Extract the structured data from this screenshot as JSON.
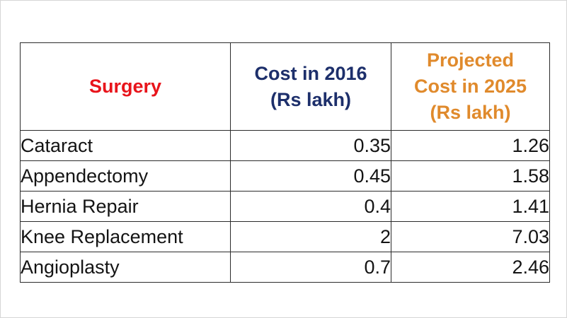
{
  "chart_data": {
    "type": "table",
    "columns": [
      {
        "lines": [
          "Surgery"
        ],
        "color": "#e8141b"
      },
      {
        "lines": [
          "Cost in 2016",
          "(Rs lakh)"
        ],
        "color": "#1d2f6b"
      },
      {
        "lines": [
          "Projected",
          "Cost in 2025",
          "(Rs lakh)"
        ],
        "color": "#e08a2c"
      }
    ],
    "rows": [
      {
        "surgery": "Cataract",
        "cost_2016": "0.35",
        "cost_2025": "1.26"
      },
      {
        "surgery": "Appendectomy",
        "cost_2016": "0.45",
        "cost_2025": "1.58"
      },
      {
        "surgery": "Hernia Repair",
        "cost_2016": "0.4",
        "cost_2025": "1.41"
      },
      {
        "surgery": "Knee Replacement",
        "cost_2016": "2",
        "cost_2025": "7.03"
      },
      {
        "surgery": "Angioplasty",
        "cost_2016": "0.7",
        "cost_2025": "2.46"
      }
    ]
  }
}
